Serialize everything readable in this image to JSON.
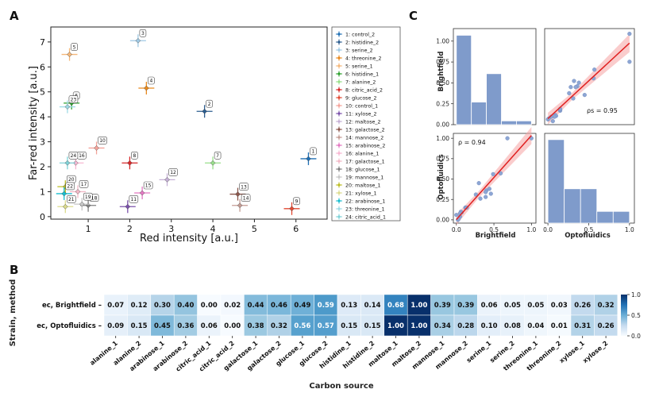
{
  "panels": {
    "a": "A",
    "b": "B",
    "c": "C"
  },
  "chart_data": [
    {
      "type": "scatter",
      "title": "",
      "xlabel": "Red intensity [a.u.]",
      "ylabel": "Far-red intensity [a.u.]",
      "xlim": [
        0.1,
        6.75
      ],
      "ylim": [
        -0.1,
        7.6
      ],
      "xticks": [
        1,
        2,
        3,
        4,
        5,
        6
      ],
      "yticks": [
        0,
        1,
        2,
        3,
        4,
        5,
        6,
        7
      ],
      "grid": false,
      "legend_position": "right",
      "points": [
        {
          "id": "1",
          "name": "1: control_2",
          "x": 6.3,
          "y": 2.32,
          "color": "#1f6fb4"
        },
        {
          "id": "2",
          "name": "2: histidine_2",
          "x": 3.8,
          "y": 4.22,
          "color": "#2c5d8f"
        },
        {
          "id": "3",
          "name": "3: serine_2",
          "x": 2.2,
          "y": 7.05,
          "color": "#9fc9e4"
        },
        {
          "id": "4",
          "name": "4: threonine_2",
          "x": 2.4,
          "y": 5.15,
          "color": "#e8891d"
        },
        {
          "id": "5",
          "name": "5: serine_1",
          "x": 0.55,
          "y": 6.5,
          "color": "#f5b779"
        },
        {
          "id": "6",
          "name": "6: histidine_1",
          "x": 0.6,
          "y": 4.55,
          "color": "#2ca02c"
        },
        {
          "id": "7",
          "name": "7: alanine_2",
          "x": 4.0,
          "y": 2.15,
          "color": "#98df8a"
        },
        {
          "id": "8",
          "name": "8: citric_acid_2",
          "x": 2.0,
          "y": 2.15,
          "color": "#d62728"
        },
        {
          "id": "9",
          "name": "9: glucose_2",
          "x": 5.9,
          "y": 0.32,
          "color": "#e24a33"
        },
        {
          "id": "10",
          "name": "10: control_1",
          "x": 1.2,
          "y": 2.75,
          "color": "#f4a39a"
        },
        {
          "id": "11",
          "name": "11: xylose_2",
          "x": 1.95,
          "y": 0.4,
          "color": "#7b52ab"
        },
        {
          "id": "12",
          "name": "12: maltose_2",
          "x": 2.9,
          "y": 1.48,
          "color": "#c5b0d5"
        },
        {
          "id": "13",
          "name": "13: galactose_2",
          "x": 4.6,
          "y": 0.9,
          "color": "#8c564b"
        },
        {
          "id": "14",
          "name": "14: mannose_2",
          "x": 4.65,
          "y": 0.45,
          "color": "#c49c94"
        },
        {
          "id": "15",
          "name": "15: arabinose_2",
          "x": 2.3,
          "y": 0.95,
          "color": "#e377c2"
        },
        {
          "id": "16",
          "name": "16: alanine_1",
          "x": 0.7,
          "y": 2.15,
          "color": "#f7b6d2"
        },
        {
          "id": "17",
          "name": "17: galactose_1",
          "x": 0.75,
          "y": 1.0,
          "color": "#f2b8c6"
        },
        {
          "id": "18",
          "name": "18: glucose_1",
          "x": 1.0,
          "y": 0.45,
          "color": "#7f7f7f"
        },
        {
          "id": "19",
          "name": "19: mannose_1",
          "x": 0.85,
          "y": 0.5,
          "color": "#c7c7c7"
        },
        {
          "id": "20",
          "name": "20: maltose_1",
          "x": 0.45,
          "y": 1.2,
          "color": "#bcbd22"
        },
        {
          "id": "21",
          "name": "21: xylose_1",
          "x": 0.45,
          "y": 0.4,
          "color": "#dbdb8d"
        },
        {
          "id": "22",
          "name": "22: arabinose_1",
          "x": 0.42,
          "y": 0.92,
          "color": "#17becf"
        },
        {
          "id": "23",
          "name": "23: threonine_1",
          "x": 0.5,
          "y": 4.4,
          "color": "#9edae5"
        },
        {
          "id": "24",
          "name": "24: citric_acid_1",
          "x": 0.5,
          "y": 2.15,
          "color": "#7fd3d8"
        }
      ]
    },
    {
      "type": "heatmap",
      "xlabel": "Carbon source",
      "ylabel": "Strain, method",
      "rows": [
        "ec, Brightfield",
        "ec, Optofluidics"
      ],
      "columns": [
        "alanine_1",
        "alanine_2",
        "arabinose_1",
        "arabinose_2",
        "citric_acid_1",
        "citric_acid_2",
        "galactose_1",
        "galactose_2",
        "glucose_1",
        "glucose_2",
        "histidine_1",
        "histidine_2",
        "maltose_1",
        "maltose_2",
        "mannose_1",
        "mannose_2",
        "serine_1",
        "serine_2",
        "threonine_1",
        "threonine_2",
        "xylose_1",
        "xylose_2"
      ],
      "values": [
        [
          0.07,
          0.12,
          0.3,
          0.4,
          0.0,
          0.02,
          0.44,
          0.46,
          0.49,
          0.59,
          0.13,
          0.14,
          0.68,
          1.0,
          0.39,
          0.39,
          0.06,
          0.05,
          0.05,
          0.03,
          0.26,
          0.32
        ],
        [
          0.09,
          0.15,
          0.45,
          0.36,
          0.06,
          0.0,
          0.38,
          0.32,
          0.56,
          0.57,
          0.15,
          0.15,
          1.0,
          1.0,
          0.34,
          0.28,
          0.1,
          0.08,
          0.04,
          0.01,
          0.31,
          0.26
        ]
      ],
      "labels": [
        [
          "0.07",
          "0.12",
          "0.30",
          "0.40",
          "0.00",
          "0.02",
          "0.44",
          "0.46",
          "0.49",
          "0.59",
          "0.13",
          "0.14",
          "0.68",
          "1.00",
          "0.39",
          "0.39",
          "0.06",
          "0.05",
          "0.05",
          "0.03",
          "0.26",
          "0.32"
        ],
        [
          "0.09",
          "0.15",
          "0.45",
          "0.36",
          "0.06",
          "0.00",
          "0.38",
          "0.32",
          "0.56",
          "0.57",
          "0.15",
          "0.15",
          "1.00",
          "1.00",
          "0.34",
          "0.28",
          "0.10",
          "0.08",
          "0.04",
          "0.01",
          "0.31",
          "0.26"
        ]
      ],
      "colorbar": {
        "range": [
          0,
          1
        ],
        "ticks": [
          "1.0",
          "0.5",
          "0.0"
        ]
      }
    },
    {
      "type": "scatter",
      "subtype": "pair-grid",
      "row_labels": [
        "Brightfield",
        "Optofluidics"
      ],
      "col_labels": [
        "Brightfield",
        "Optofluidics"
      ],
      "tick_labels": [
        "0.00",
        "0.25",
        "0.50",
        "0.75",
        "1.00"
      ],
      "x_tick_labels": [
        "0.0",
        "0.5",
        "1.0"
      ],
      "upper_annotation": "ρs = 0.95",
      "lower_annotation": "ρ = 0.94",
      "hist_brightfield": [
        1.07,
        0.27,
        0.61,
        0.045,
        0.045
      ],
      "hist_optofluidics": [
        1.07,
        0.44,
        0.44,
        0.15,
        0.15
      ],
      "points_bf": [
        0.07,
        0.12,
        0.3,
        0.4,
        0.0,
        0.02,
        0.44,
        0.46,
        0.49,
        0.59,
        0.13,
        0.14,
        0.68,
        1.0,
        0.39,
        0.39,
        0.06,
        0.05,
        0.05,
        0.03,
        0.26,
        0.32
      ],
      "points_of": [
        0.09,
        0.15,
        0.45,
        0.36,
        0.06,
        0.0,
        0.38,
        0.32,
        0.56,
        0.57,
        0.15,
        0.15,
        1.0,
        1.0,
        0.34,
        0.28,
        0.1,
        0.08,
        0.04,
        0.01,
        0.31,
        0.26
      ]
    }
  ]
}
